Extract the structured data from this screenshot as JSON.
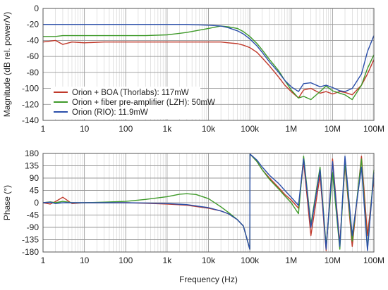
{
  "chart_data": [
    {
      "type": "line",
      "panel": "magnitude",
      "ylabel": "Magnitude (dB rel. power/V)",
      "xlabel": "",
      "xscale": "log",
      "xlim": [
        1,
        100000000
      ],
      "ylim": [
        -140,
        0
      ],
      "yticks": [
        0,
        -20,
        -40,
        -60,
        -80,
        -100,
        -120,
        -140
      ],
      "xticks": [
        1,
        10,
        100,
        1000,
        10000,
        100000,
        1000000,
        10000000,
        100000000
      ],
      "xticklabels": [
        "1",
        "10",
        "100",
        "1k",
        "10k",
        "100k",
        "1M",
        "10M",
        "100M"
      ],
      "grid": true,
      "legend_position": "bottom-left",
      "series": [
        {
          "name": "Orion + BOA (Thorlabs): 117mW",
          "color": "#c0392b",
          "x": [
            1,
            2,
            3,
            5,
            10,
            30,
            100,
            300,
            1000,
            3000,
            10000,
            20000,
            30000,
            50000,
            70000,
            100000,
            150000,
            200000,
            300000,
            500000,
            700000,
            1000000,
            1500000,
            2000000,
            3000000,
            5000000,
            7000000,
            10000000,
            15000000,
            20000000,
            30000000,
            50000000,
            70000000,
            100000000
          ],
          "y": [
            -42,
            -40,
            -45,
            -42,
            -43,
            -42,
            -42,
            -42,
            -42,
            -42,
            -42,
            -42,
            -43,
            -44,
            -46,
            -49,
            -55,
            -62,
            -72,
            -86,
            -96,
            -104,
            -112,
            -102,
            -100,
            -106,
            -104,
            -107,
            -104,
            -105,
            -108,
            -96,
            -82,
            -64
          ]
        },
        {
          "name": "Orion + fiber pre-amplifier (LZH): 50mW",
          "color": "#3f9a2a",
          "x": [
            1,
            2,
            3,
            5,
            10,
            30,
            100,
            300,
            1000,
            3000,
            10000,
            20000,
            30000,
            50000,
            70000,
            100000,
            150000,
            200000,
            300000,
            500000,
            700000,
            1000000,
            1500000,
            2000000,
            3000000,
            5000000,
            7000000,
            10000000,
            15000000,
            20000000,
            30000000,
            50000000,
            70000000,
            100000000
          ],
          "y": [
            -35,
            -35,
            -34,
            -34,
            -34,
            -34,
            -34,
            -34,
            -33,
            -30,
            -25,
            -22,
            -23,
            -25,
            -29,
            -35,
            -44,
            -52,
            -64,
            -78,
            -90,
            -102,
            -112,
            -110,
            -114,
            -104,
            -97,
            -103,
            -106,
            -108,
            -114,
            -96,
            -75,
            -58
          ]
        },
        {
          "name": "Orion (RIO): 11.9mW",
          "color": "#2b4faa",
          "x": [
            1,
            2,
            3,
            5,
            10,
            30,
            100,
            300,
            1000,
            3000,
            10000,
            20000,
            30000,
            50000,
            70000,
            100000,
            150000,
            200000,
            300000,
            500000,
            700000,
            1000000,
            1500000,
            2000000,
            3000000,
            5000000,
            7000000,
            10000000,
            15000000,
            20000000,
            30000000,
            50000000,
            70000000,
            100000000
          ],
          "y": [
            -20,
            -20,
            -20,
            -20,
            -20,
            -20,
            -20,
            -20,
            -20,
            -20,
            -21,
            -22,
            -24,
            -28,
            -32,
            -38,
            -47,
            -55,
            -67,
            -80,
            -90,
            -98,
            -104,
            -94,
            -93,
            -98,
            -96,
            -99,
            -103,
            -104,
            -100,
            -82,
            -54,
            -34
          ]
        }
      ]
    },
    {
      "type": "line",
      "panel": "phase",
      "ylabel": "Phase (°)",
      "xlabel": "Frequency (Hz)",
      "xscale": "log",
      "xlim": [
        1,
        100000000
      ],
      "ylim": [
        -180,
        180
      ],
      "yticks": [
        180,
        135,
        90,
        45,
        0,
        -45,
        -90,
        -135,
        -180
      ],
      "xticks": [
        1,
        10,
        100,
        1000,
        10000,
        100000,
        1000000,
        10000000,
        100000000
      ],
      "xticklabels": [
        "1",
        "10",
        "100",
        "1k",
        "10k",
        "100k",
        "1M",
        "10M",
        "100M"
      ],
      "grid": true,
      "series": [
        {
          "name": "Orion + BOA (Thorlabs): 117mW",
          "color": "#c0392b",
          "x": [
            1,
            1.5,
            2,
            3,
            5,
            10,
            30,
            100,
            300,
            1000,
            3000,
            10000,
            20000,
            30000,
            50000,
            70000,
            100000,
            101000,
            150000,
            200000,
            300000,
            500000,
            700000,
            1000000,
            1500000,
            2000000,
            3000000,
            5000000,
            7000000,
            10000000,
            15000000,
            20000000,
            30000000,
            50000000,
            70000000,
            100000000
          ],
          "y": [
            0,
            -5,
            4,
            20,
            -3,
            0,
            0,
            0,
            -2,
            -5,
            -9,
            -20,
            -30,
            -40,
            -62,
            -85,
            -170,
            178,
            150,
            120,
            90,
            55,
            30,
            10,
            -20,
            150,
            -120,
            100,
            -175,
            160,
            -150,
            140,
            -160,
            170,
            -120,
            90
          ]
        },
        {
          "name": "Orion + fiber pre-amplifier (LZH): 50mW",
          "color": "#3f9a2a",
          "x": [
            1,
            1.5,
            2,
            3,
            5,
            10,
            30,
            100,
            300,
            1000,
            2000,
            3000,
            5000,
            10000,
            20000,
            30000,
            50000,
            70000,
            100000,
            101000,
            150000,
            200000,
            300000,
            500000,
            700000,
            1000000,
            1500000,
            2000000,
            3000000,
            5000000,
            7000000,
            10000000,
            15000000,
            20000000,
            30000000,
            50000000,
            70000000,
            100000000
          ],
          "y": [
            0,
            3,
            0,
            5,
            0,
            0,
            2,
            5,
            12,
            22,
            31,
            33,
            30,
            15,
            -15,
            -35,
            -62,
            -85,
            -170,
            178,
            150,
            120,
            85,
            50,
            25,
            0,
            -40,
            170,
            -80,
            130,
            -160,
            110,
            -170,
            150,
            -140,
            160,
            -170,
            120
          ]
        },
        {
          "name": "Orion (RIO): 11.9mW",
          "color": "#2b4faa",
          "x": [
            1,
            1.5,
            2,
            3,
            5,
            10,
            30,
            100,
            300,
            1000,
            3000,
            10000,
            20000,
            30000,
            50000,
            70000,
            100000,
            101000,
            150000,
            200000,
            300000,
            500000,
            700000,
            1000000,
            1500000,
            2000000,
            3000000,
            5000000,
            7000000,
            10000000,
            15000000,
            20000000,
            30000000,
            50000000,
            70000000,
            100000000
          ],
          "y": [
            0,
            2,
            -3,
            0,
            0,
            0,
            0,
            0,
            -1,
            -3,
            -7,
            -18,
            -30,
            -40,
            -62,
            -85,
            -170,
            178,
            155,
            130,
            100,
            70,
            45,
            20,
            -10,
            160,
            -90,
            120,
            -170,
            150,
            -160,
            170,
            -120,
            130,
            -175,
            110
          ]
        }
      ]
    }
  ]
}
